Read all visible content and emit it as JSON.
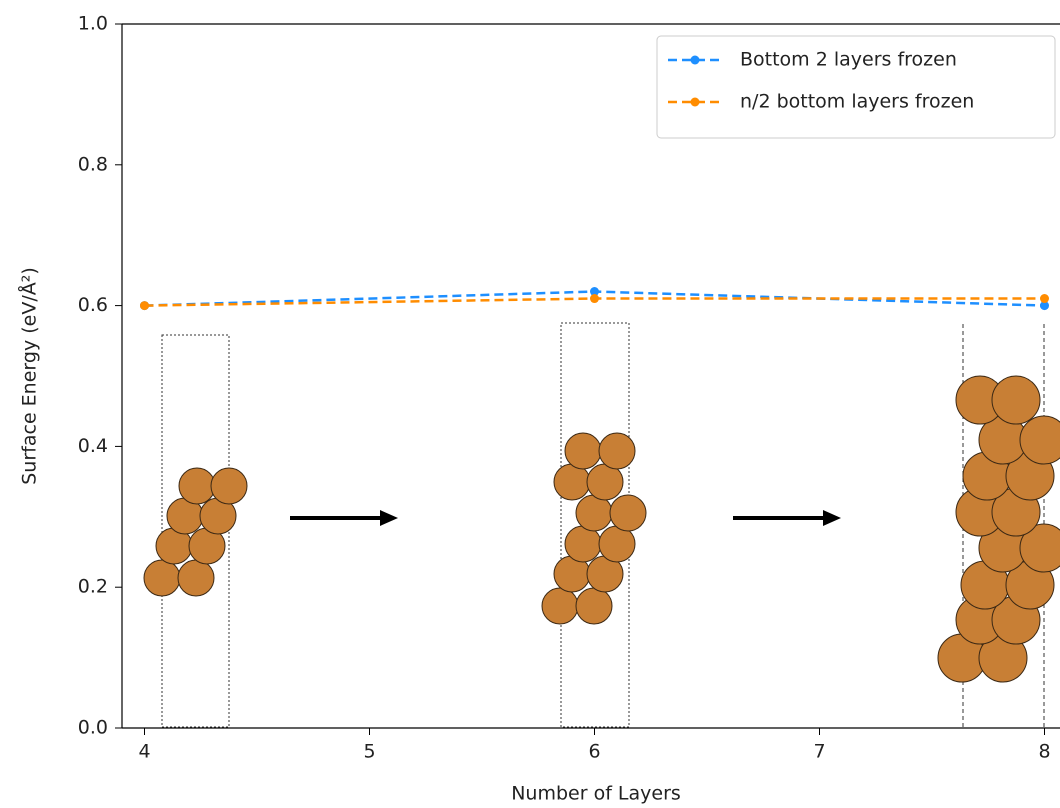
{
  "chart_data": {
    "type": "line",
    "x": [
      4,
      6,
      8
    ],
    "xlim": [
      3.9,
      8.1
    ],
    "xticks": [
      4,
      5,
      6,
      7,
      8
    ],
    "ylim": [
      0.0,
      1.0
    ],
    "yticks": [
      {
        "value": 0,
        "label": "0.0"
      },
      0.2,
      0.4,
      0.6,
      0.8,
      {
        "value": 1,
        "label": "1.0"
      }
    ],
    "xlabel": "Number of Layers",
    "ylabel": "Surface Energy (eV/Å²)",
    "legend": "upper right",
    "series": [
      {
        "name": "Bottom 2 layers frozen",
        "color": "#1e8fff",
        "values": [
          0.6,
          0.62,
          0.6
        ]
      },
      {
        "name": "n/2 bottom layers frozen",
        "color": "#ff8c00",
        "values": [
          0.6,
          0.61,
          0.61
        ]
      }
    ]
  }
}
